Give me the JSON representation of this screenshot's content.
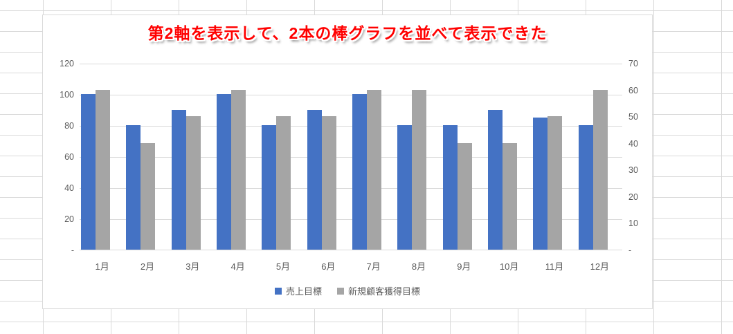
{
  "spreadsheet": {
    "gridline_color": "#d9d9d9",
    "background_color": "#ffffff"
  },
  "chart": {
    "border_color": "#d9d9d9",
    "title_color": "#ff0000",
    "axis_text_color": "#595959",
    "gridline_color": "#d9d9d9"
  },
  "chart_data": {
    "type": "bar",
    "title": "第2軸を表示して、2本の棒グラフを並べて表示できた",
    "categories": [
      "1月",
      "2月",
      "3月",
      "4月",
      "5月",
      "6月",
      "7月",
      "8月",
      "9月",
      "10月",
      "11月",
      "12月"
    ],
    "series": [
      {
        "name": "売上目標",
        "axis": "primary",
        "color": "#4472C4",
        "values": [
          100,
          80,
          90,
          100,
          80,
          90,
          100,
          80,
          80,
          90,
          85,
          80
        ]
      },
      {
        "name": "新規顧客獲得目標",
        "axis": "secondary",
        "color": "#A5A5A5",
        "values": [
          60,
          40,
          50,
          60,
          50,
          50,
          60,
          60,
          40,
          40,
          50,
          60
        ]
      }
    ],
    "primary_axis": {
      "min": 0,
      "max": 120,
      "ticks": [
        {
          "v": 120,
          "label": "120"
        },
        {
          "v": 100,
          "label": "100"
        },
        {
          "v": 80,
          "label": "80"
        },
        {
          "v": 60,
          "label": "60"
        },
        {
          "v": 40,
          "label": "40"
        },
        {
          "v": 20,
          "label": "20"
        },
        {
          "v": 0,
          "label": "-"
        }
      ]
    },
    "secondary_axis": {
      "min": 0,
      "max": 70,
      "ticks": [
        {
          "v": 70,
          "label": "70"
        },
        {
          "v": 60,
          "label": "60"
        },
        {
          "v": 50,
          "label": "50"
        },
        {
          "v": 40,
          "label": "40"
        },
        {
          "v": 30,
          "label": "30"
        },
        {
          "v": 20,
          "label": "20"
        },
        {
          "v": 10,
          "label": "10"
        },
        {
          "v": 0,
          "label": "-"
        }
      ]
    },
    "grid": true,
    "legend_position": "bottom"
  }
}
